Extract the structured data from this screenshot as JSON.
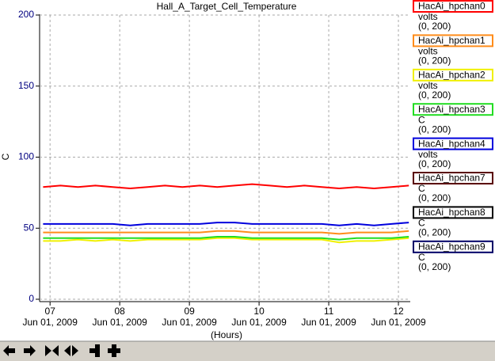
{
  "chart_data": {
    "type": "line",
    "title": "Hall_A_Target_Cell_Temperature",
    "y_label": "C",
    "x_label": "(Hours)",
    "xlim": [
      6.85,
      12.17
    ],
    "xticks": [
      {
        "value": 7,
        "label": "07"
      },
      {
        "value": 8,
        "label": "08"
      },
      {
        "value": 9,
        "label": "09"
      },
      {
        "value": 10,
        "label": "10"
      },
      {
        "value": 11,
        "label": "11"
      },
      {
        "value": 12,
        "label": "12"
      }
    ],
    "xtick_dates": [
      "Jun 01, 2009",
      "Jun 01, 2009",
      "Jun 01, 2009",
      "Jun 01, 2009",
      "Jun 01, 2009",
      "Jun 01, 2009"
    ],
    "ylim": [
      0,
      200
    ],
    "yticks": [
      0,
      50,
      100,
      150,
      200
    ],
    "grid": true,
    "x": [
      6.9,
      7.15,
      7.4,
      7.65,
      7.9,
      8.15,
      8.4,
      8.65,
      8.9,
      9.15,
      9.4,
      9.65,
      9.9,
      10.15,
      10.4,
      10.65,
      10.9,
      11.15,
      11.4,
      11.65,
      11.9,
      12.15
    ],
    "series": [
      {
        "name": "HacAi_hpchan0",
        "unit": "volts",
        "range": "(0, 200)",
        "color": "#ff0000",
        "values": [
          79,
          80,
          79,
          80,
          79,
          78,
          79,
          80,
          79,
          80,
          79,
          80,
          81,
          80,
          79,
          80,
          79,
          78,
          79,
          78,
          79,
          80
        ]
      },
      {
        "name": "HacAi_hpchan1",
        "unit": "volts",
        "range": "(0, 200)",
        "color": "#ff8c1a",
        "values": [
          47,
          47,
          47,
          47,
          47,
          47,
          47,
          47,
          47,
          47,
          48,
          48,
          47,
          47,
          47,
          47,
          47,
          46,
          47,
          47,
          47,
          48
        ]
      },
      {
        "name": "HacAi_hpchan2",
        "unit": "volts",
        "range": "(0, 200)",
        "color": "#f0f000",
        "values": [
          41,
          41,
          42,
          41,
          42,
          41,
          42,
          42,
          42,
          42,
          43,
          43,
          42,
          42,
          42,
          42,
          42,
          40,
          41,
          41,
          42,
          43
        ]
      },
      {
        "name": "HacAi_hpchan3",
        "unit": "C",
        "range": "(0, 200)",
        "color": "#22dd22",
        "values": [
          43,
          43,
          43,
          43,
          43,
          43,
          43,
          43,
          43,
          43,
          44,
          44,
          43,
          43,
          43,
          43,
          43,
          42,
          43,
          43,
          43,
          44
        ]
      },
      {
        "name": "HacAi_hpchan4",
        "unit": "volts",
        "range": "(0, 200)",
        "color": "#0000dd",
        "values": [
          53,
          53,
          53,
          53,
          53,
          52,
          53,
          53,
          53,
          53,
          54,
          54,
          53,
          53,
          53,
          53,
          53,
          52,
          53,
          52,
          53,
          54
        ]
      },
      {
        "name": "HacAi_hpchan7",
        "unit": "C",
        "range": "(0, 200)",
        "color": "#5a0000",
        "values": [
          null,
          null,
          null,
          null,
          null,
          null,
          null,
          null,
          null,
          null,
          null,
          null,
          null,
          null,
          null,
          null,
          null,
          null,
          null,
          null,
          null,
          null
        ]
      },
      {
        "name": "HacAi_hpchan8",
        "unit": "C",
        "range": "(0, 200)",
        "color": "#000000",
        "values": [
          null,
          null,
          null,
          null,
          null,
          null,
          null,
          null,
          null,
          null,
          null,
          null,
          null,
          null,
          null,
          null,
          null,
          null,
          null,
          null,
          null,
          null
        ]
      },
      {
        "name": "HacAi_hpchan9",
        "unit": "C",
        "range": "(0, 200)",
        "color": "#000066",
        "values": [
          null,
          null,
          null,
          null,
          null,
          null,
          null,
          null,
          null,
          null,
          null,
          null,
          null,
          null,
          null,
          null,
          null,
          null,
          null,
          null,
          null,
          null
        ]
      }
    ]
  }
}
